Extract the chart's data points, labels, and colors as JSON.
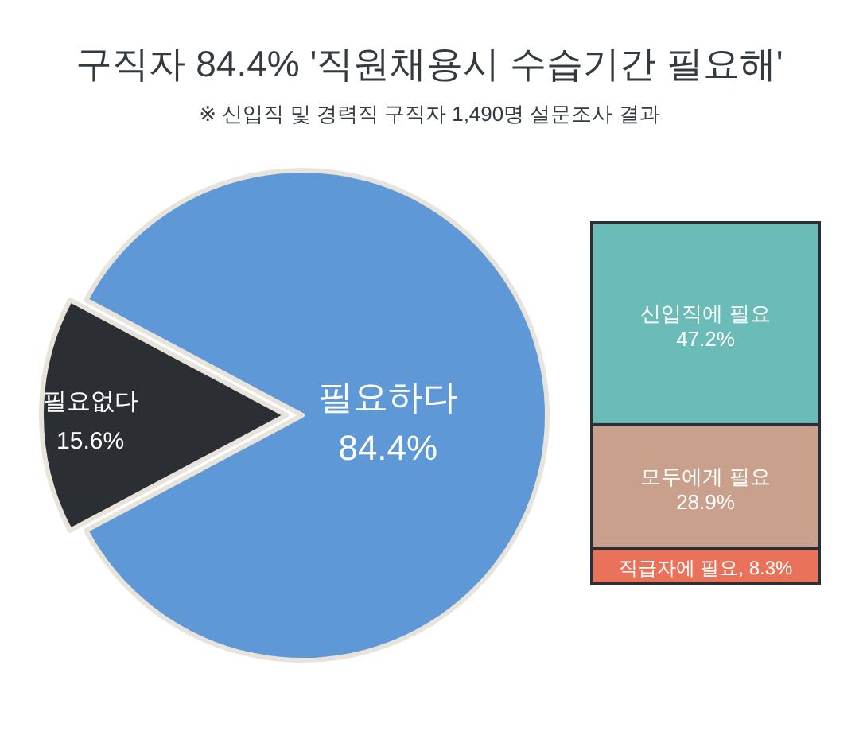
{
  "chart_data": [
    {
      "type": "pie",
      "title": "구직자 84.4% '직원채용시 수습기간 필요해'",
      "subtitle": "※ 신입직 및 경력직 구직자 1,490명 설문조사 결과",
      "categories": [
        "필요하다",
        "필요없다"
      ],
      "values": [
        84.4,
        15.6
      ],
      "colors": [
        "#5f98d6",
        "#2b2f33"
      ],
      "value_labels": [
        "84.4%",
        "15.6%"
      ]
    },
    {
      "type": "bar",
      "stacked": true,
      "categories": [
        null
      ],
      "series": [
        {
          "name": "직급자에 필요,",
          "color": "#e8735a",
          "values": [
            8.3
          ],
          "value_labels": [
            "8.3%"
          ]
        },
        {
          "name": "모두에게 필요",
          "color": "#c9a08c",
          "values": [
            28.9
          ],
          "value_labels": [
            "28.9%"
          ]
        },
        {
          "name": "신입직에 필요",
          "color": "#6bbcb8",
          "values": [
            47.2
          ],
          "value_labels": [
            "47.2%"
          ]
        }
      ]
    }
  ]
}
